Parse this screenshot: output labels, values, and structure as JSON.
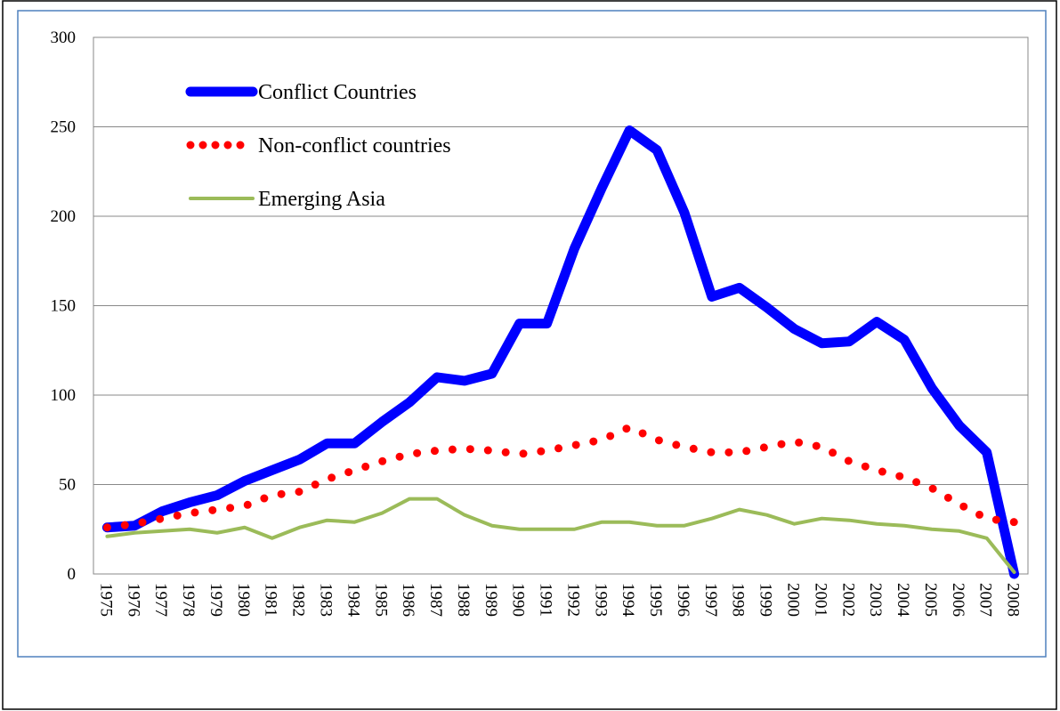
{
  "chart_data": {
    "type": "line",
    "categories": [
      "1975",
      "1976",
      "1977",
      "1978",
      "1979",
      "1980",
      "1981",
      "1982",
      "1983",
      "1984",
      "1985",
      "1986",
      "1987",
      "1988",
      "1989",
      "1990",
      "1991",
      "1992",
      "1993",
      "1994",
      "1995",
      "1996",
      "1997",
      "1998",
      "1999",
      "2000",
      "2001",
      "2002",
      "2003",
      "2004",
      "2005",
      "2006",
      "2007",
      "2008"
    ],
    "series": [
      {
        "name": "Conflict Countries",
        "color": "#0000ff",
        "style": "solid",
        "values": [
          26,
          27,
          35,
          40,
          44,
          52,
          58,
          64,
          73,
          73,
          85,
          96,
          110,
          108,
          112,
          140,
          140,
          182,
          216,
          248,
          237,
          202,
          155,
          160,
          149,
          137,
          129,
          130,
          141,
          131,
          104,
          83,
          68,
          0
        ]
      },
      {
        "name": "Non-conflict countries",
        "color": "#ff0000",
        "style": "dotted",
        "values": [
          26,
          28,
          31,
          34,
          36,
          38,
          44,
          46,
          53,
          58,
          63,
          67,
          69,
          70,
          69,
          67,
          69,
          72,
          75,
          82,
          75,
          71,
          68,
          68,
          71,
          74,
          71,
          63,
          58,
          54,
          48,
          39,
          31,
          29
        ]
      },
      {
        "name": "Emerging Asia",
        "color": "#9bbb59",
        "style": "solid",
        "values": [
          21,
          23,
          24,
          25,
          23,
          26,
          20,
          26,
          30,
          29,
          34,
          42,
          42,
          33,
          27,
          25,
          25,
          25,
          29,
          29,
          27,
          27,
          31,
          36,
          33,
          28,
          31,
          30,
          28,
          27,
          25,
          24,
          20,
          1
        ]
      }
    ],
    "ylim": [
      0,
      300
    ],
    "yticks": [
      0,
      50,
      100,
      150,
      200,
      250,
      300
    ],
    "grid": true,
    "legend": "upper left"
  }
}
